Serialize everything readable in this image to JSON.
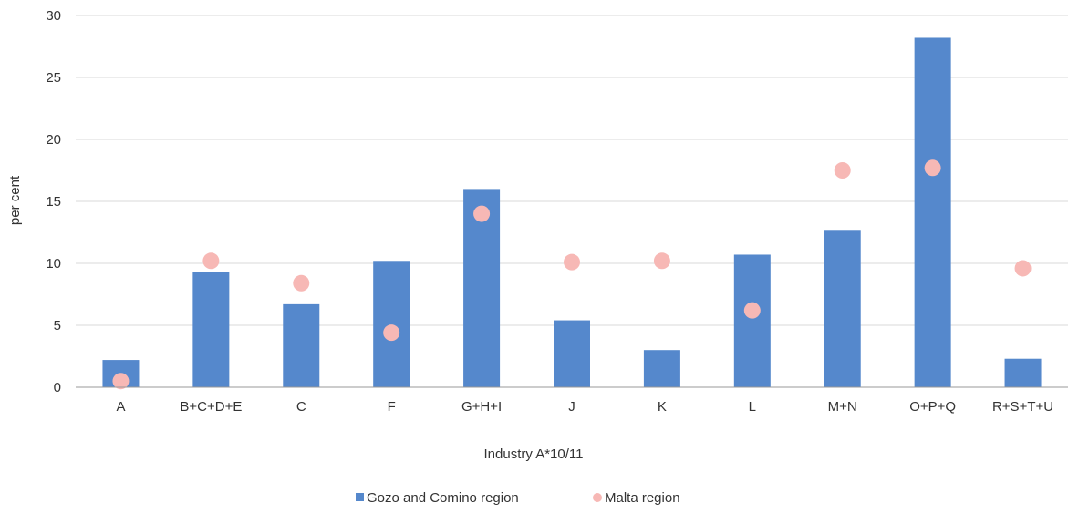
{
  "chart_data": {
    "type": "bar",
    "categories": [
      "A",
      "B+C+D+E",
      "C",
      "F",
      "G+H+I",
      "J",
      "K",
      "L",
      "M+N",
      "O+P+Q",
      "R+S+T+U"
    ],
    "series": [
      {
        "name": "Gozo and Comino region",
        "type": "bar",
        "color": "#5588cc",
        "values": [
          2.2,
          9.3,
          6.7,
          10.2,
          16.0,
          5.4,
          3.0,
          10.7,
          12.7,
          28.2,
          2.3
        ]
      },
      {
        "name": "Malta region",
        "type": "scatter",
        "color": "#f7b8b5",
        "values": [
          0.5,
          10.2,
          8.4,
          4.4,
          14.0,
          10.1,
          10.2,
          6.2,
          17.5,
          17.7,
          9.6
        ]
      }
    ],
    "xlabel": "Industry A*10/11",
    "ylabel": "per cent",
    "ylim": [
      0,
      30
    ],
    "yticks": [
      0,
      5,
      10,
      15,
      20,
      25,
      30
    ],
    "grid": true,
    "legend": "bottom"
  }
}
